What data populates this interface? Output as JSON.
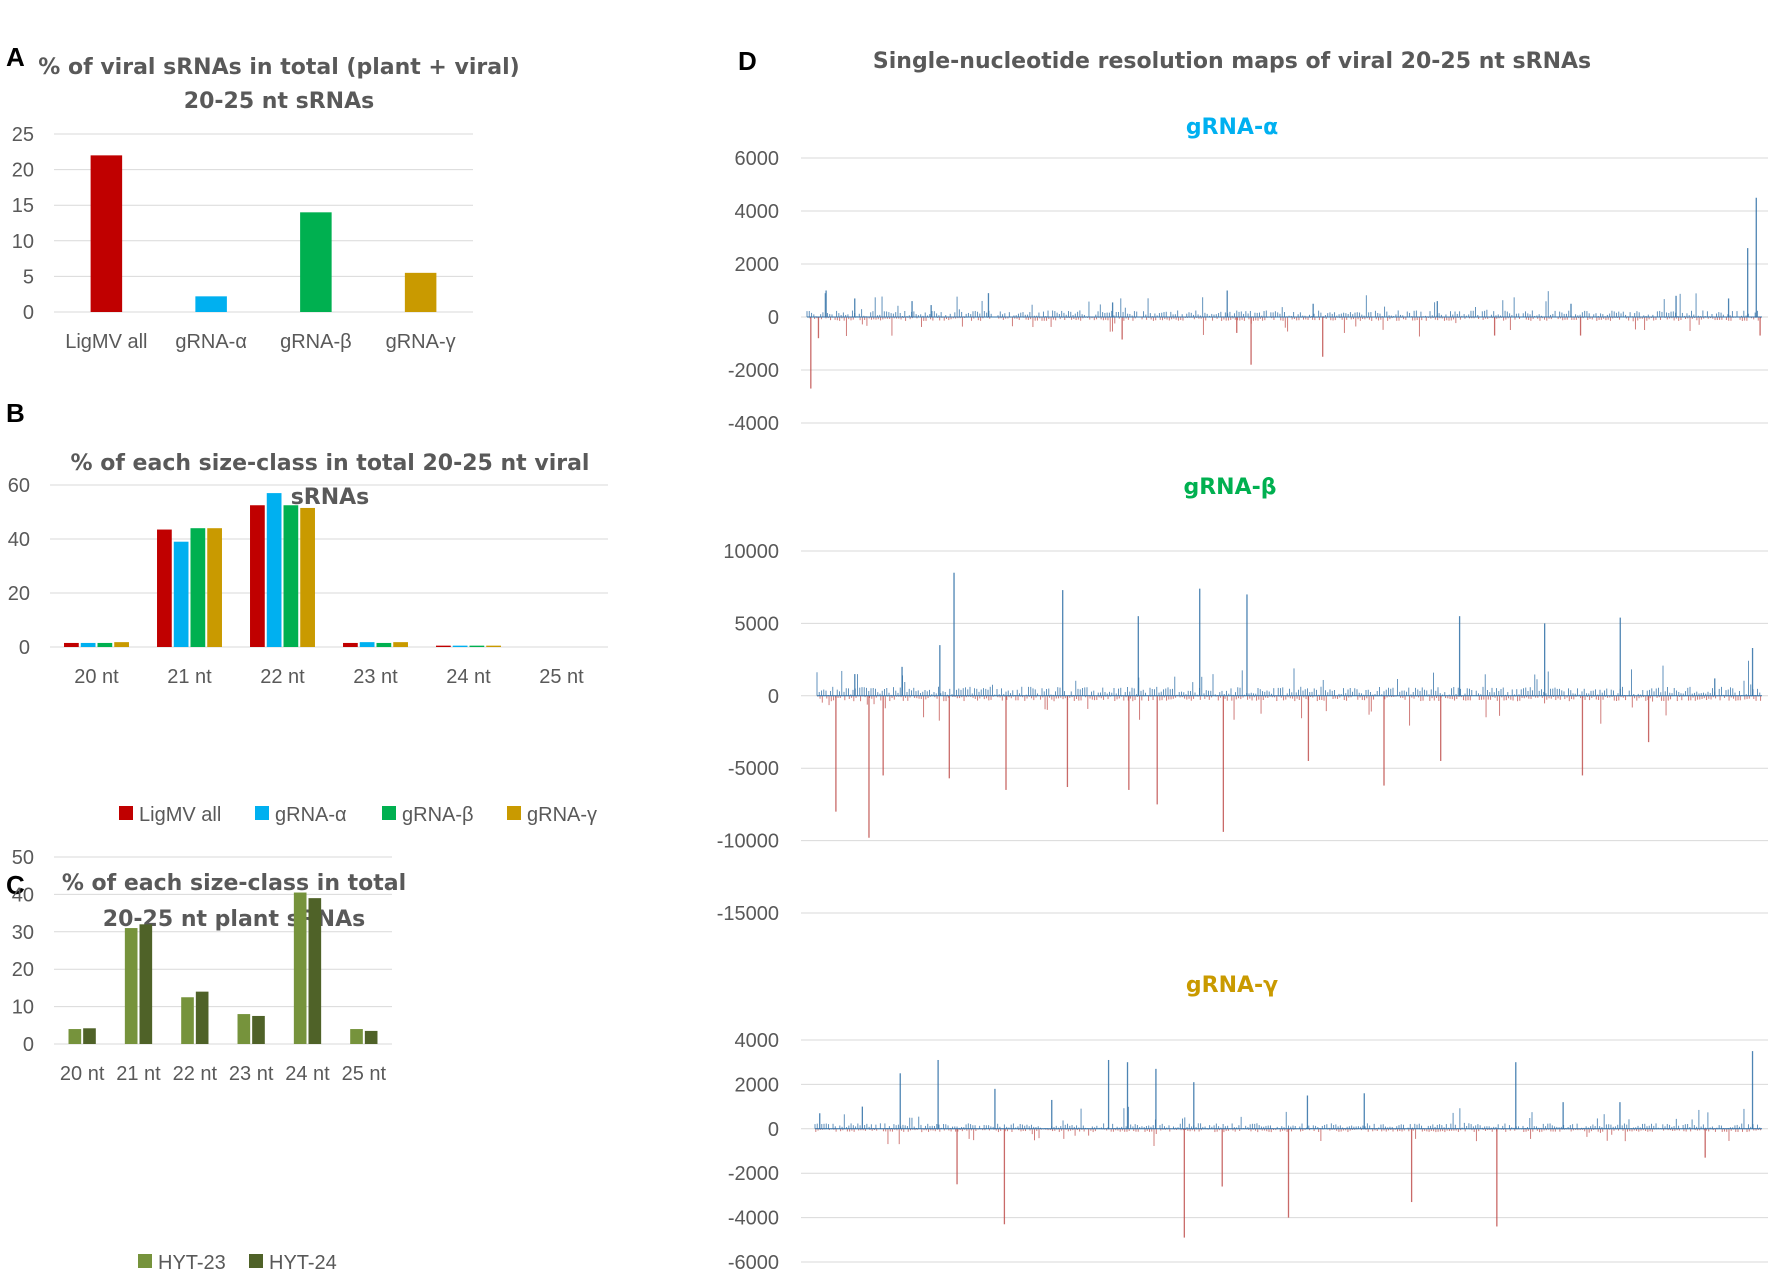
{
  "colors": {
    "ligmv": "#c00000",
    "alpha": "#00b0f0",
    "beta": "#00b050",
    "gamma": "#c99a00",
    "hyt23": "#76933c",
    "hyt24": "#4f6228",
    "pos": "#2e6ea6",
    "neg": "#c0504d"
  },
  "panel_letters": {
    "a": "A",
    "b": "B",
    "c": "C",
    "d": "D"
  },
  "d_title": "Single-nucleotide resolution maps of viral 20-25 nt sRNAs",
  "chart_data": [
    {
      "id": "A",
      "type": "bar",
      "title_lines": [
        "% of viral sRNAs in total (plant + viral)",
        "20-25 nt sRNAs"
      ],
      "categories": [
        "LigMV all",
        "gRNA-α",
        "gRNA-β",
        "gRNA-γ"
      ],
      "values": [
        22,
        2.2,
        14,
        5.5
      ],
      "bar_color_keys": [
        "ligmv",
        "alpha",
        "beta",
        "gamma"
      ],
      "ylim": [
        0,
        25
      ],
      "yticks": [
        "0",
        "5",
        "10",
        "15",
        "20",
        "25"
      ],
      "grid": true
    },
    {
      "id": "B",
      "type": "bar",
      "title_lines": [
        "% of each size-class in total 20-25 nt viral",
        "sRNAs"
      ],
      "categories": [
        "20 nt",
        "21 nt",
        "22 nt",
        "23 nt",
        "24 nt",
        "25 nt"
      ],
      "series": [
        {
          "name": "LigMV all",
          "color_key": "ligmv",
          "values": [
            1.5,
            43.5,
            52.5,
            1.5,
            0.5,
            0
          ]
        },
        {
          "name": "gRNA-α",
          "color_key": "alpha",
          "values": [
            1.5,
            39,
            57,
            1.8,
            0.5,
            0
          ]
        },
        {
          "name": "gRNA-β",
          "color_key": "beta",
          "values": [
            1.5,
            44,
            52.5,
            1.5,
            0.5,
            0
          ]
        },
        {
          "name": "gRNA-γ",
          "color_key": "gamma",
          "values": [
            1.8,
            44,
            51.5,
            1.8,
            0.5,
            0
          ]
        }
      ],
      "ylim": [
        0,
        60
      ],
      "yticks": [
        "0",
        "20",
        "40",
        "60"
      ],
      "legend_position": "bottom",
      "grid": true
    },
    {
      "id": "C",
      "type": "bar",
      "title_lines": [
        "% of each size-class in total",
        "20-25 nt plant sRNAs"
      ],
      "categories": [
        "20 nt",
        "21 nt",
        "22 nt",
        "23 nt",
        "24 nt",
        "25 nt"
      ],
      "series": [
        {
          "name": "HYT-23",
          "color_key": "hyt23",
          "values": [
            4,
            31,
            12.5,
            8,
            40.5,
            4
          ]
        },
        {
          "name": "HYT-24",
          "color_key": "hyt24",
          "values": [
            4.2,
            32,
            14,
            7.5,
            39,
            3.5
          ]
        }
      ],
      "ylim": [
        0,
        50
      ],
      "yticks": [
        "0",
        "10",
        "20",
        "30",
        "40",
        "50"
      ],
      "legend_position": "bottom",
      "grid": true
    },
    {
      "id": "D-alpha",
      "type": "bar",
      "subtitle": "gRNA-α",
      "subtitle_color_key": "alpha",
      "ylim": [
        -4000,
        6000
      ],
      "yticks": [
        "-4000",
        "-2000",
        "0",
        "2000",
        "4000",
        "6000"
      ],
      "spikes": [
        {
          "x": 0.004,
          "v": -2700
        },
        {
          "x": 0.012,
          "v": -800
        },
        {
          "x": 0.02,
          "v": 1000
        },
        {
          "x": 0.05,
          "v": 700
        },
        {
          "x": 0.11,
          "v": 600
        },
        {
          "x": 0.13,
          "v": 450
        },
        {
          "x": 0.19,
          "v": 900
        },
        {
          "x": 0.32,
          "v": 550
        },
        {
          "x": 0.33,
          "v": -850
        },
        {
          "x": 0.44,
          "v": 1000
        },
        {
          "x": 0.45,
          "v": -600
        },
        {
          "x": 0.465,
          "v": -1800
        },
        {
          "x": 0.54,
          "v": -1500
        },
        {
          "x": 0.53,
          "v": 500
        },
        {
          "x": 0.66,
          "v": 600
        },
        {
          "x": 0.72,
          "v": -700
        },
        {
          "x": 0.8,
          "v": 500
        },
        {
          "x": 0.81,
          "v": -700
        },
        {
          "x": 0.91,
          "v": 800
        },
        {
          "x": 0.965,
          "v": 700
        },
        {
          "x": 0.985,
          "v": 2600
        },
        {
          "x": 0.994,
          "v": 4500
        },
        {
          "x": 0.998,
          "v": -700
        }
      ]
    },
    {
      "id": "D-beta",
      "type": "bar",
      "subtitle": "gRNA-β",
      "subtitle_color_key": "beta",
      "ylim": [
        -15000,
        10000
      ],
      "yticks": [
        "-15000",
        "-10000",
        "-5000",
        "0",
        "5000",
        "10000"
      ],
      "spikes": [
        {
          "x": 0.02,
          "v": -8000
        },
        {
          "x": 0.04,
          "v": 1500
        },
        {
          "x": 0.055,
          "v": -9800
        },
        {
          "x": 0.07,
          "v": -5500
        },
        {
          "x": 0.09,
          "v": 2000
        },
        {
          "x": 0.13,
          "v": 3500
        },
        {
          "x": 0.145,
          "v": 8500
        },
        {
          "x": 0.14,
          "v": -5700
        },
        {
          "x": 0.2,
          "v": -6500
        },
        {
          "x": 0.26,
          "v": 7300
        },
        {
          "x": 0.265,
          "v": -6300
        },
        {
          "x": 0.33,
          "v": -6500
        },
        {
          "x": 0.34,
          "v": 5500
        },
        {
          "x": 0.36,
          "v": -7500
        },
        {
          "x": 0.405,
          "v": 7400
        },
        {
          "x": 0.43,
          "v": -9400
        },
        {
          "x": 0.455,
          "v": 7000
        },
        {
          "x": 0.52,
          "v": -4500
        },
        {
          "x": 0.6,
          "v": -6200
        },
        {
          "x": 0.66,
          "v": -4500
        },
        {
          "x": 0.68,
          "v": 5500
        },
        {
          "x": 0.77,
          "v": 5000
        },
        {
          "x": 0.81,
          "v": -5500
        },
        {
          "x": 0.85,
          "v": 5400
        },
        {
          "x": 0.88,
          "v": -3200
        },
        {
          "x": 0.95,
          "v": 1200
        },
        {
          "x": 0.99,
          "v": 3300
        }
      ]
    },
    {
      "id": "D-gamma",
      "type": "bar",
      "subtitle": "gRNA-γ",
      "subtitle_color_key": "gamma",
      "ylim": [
        -6000,
        4000
      ],
      "yticks": [
        "-6000",
        "-4000",
        "-2000",
        "0",
        "2000",
        "4000"
      ],
      "spikes": [
        {
          "x": 0.005,
          "v": 700
        },
        {
          "x": 0.05,
          "v": 1000
        },
        {
          "x": 0.09,
          "v": 2500
        },
        {
          "x": 0.13,
          "v": 3100
        },
        {
          "x": 0.15,
          "v": -2500
        },
        {
          "x": 0.2,
          "v": -4300
        },
        {
          "x": 0.19,
          "v": 1800
        },
        {
          "x": 0.25,
          "v": 1300
        },
        {
          "x": 0.31,
          "v": 3100
        },
        {
          "x": 0.33,
          "v": 3000
        },
        {
          "x": 0.36,
          "v": 2700
        },
        {
          "x": 0.39,
          "v": -4900
        },
        {
          "x": 0.4,
          "v": 2100
        },
        {
          "x": 0.43,
          "v": -2600
        },
        {
          "x": 0.5,
          "v": -4000
        },
        {
          "x": 0.52,
          "v": 1500
        },
        {
          "x": 0.58,
          "v": 1600
        },
        {
          "x": 0.63,
          "v": -3300
        },
        {
          "x": 0.72,
          "v": -4400
        },
        {
          "x": 0.74,
          "v": 3000
        },
        {
          "x": 0.79,
          "v": 1200
        },
        {
          "x": 0.85,
          "v": 1200
        },
        {
          "x": 0.94,
          "v": -1300
        },
        {
          "x": 0.99,
          "v": 3500
        }
      ]
    }
  ]
}
